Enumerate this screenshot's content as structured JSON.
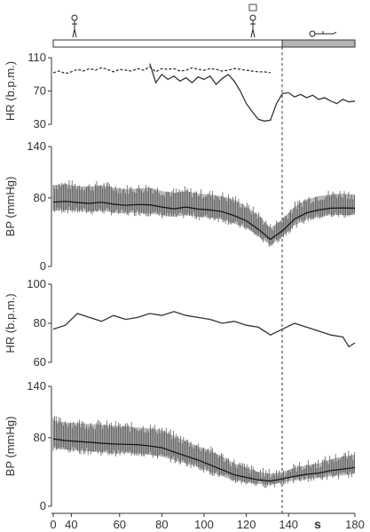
{
  "chart_data": [
    {
      "type": "line",
      "panel": "hr-top",
      "ylabel": "HR (b.p.m.)",
      "ylim": [
        30,
        110
      ],
      "yticks": [
        "110",
        "70",
        "30"
      ],
      "ytick_values": [
        110,
        70,
        30
      ],
      "series": [
        {
          "style": "dashed",
          "x": [
            0,
            5,
            10,
            15,
            20,
            25,
            30,
            35,
            40,
            45,
            50,
            55,
            60,
            65,
            70,
            75,
            80,
            85,
            90,
            95,
            100,
            105,
            110,
            115,
            120,
            125,
            130,
            135,
            140,
            145,
            150,
            155,
            160,
            165,
            170,
            175,
            180
          ],
          "y": [
            92,
            94,
            91,
            93,
            96,
            94,
            97,
            95,
            98,
            96,
            93,
            96,
            95,
            94,
            97,
            95,
            99,
            93,
            97,
            96,
            97,
            94,
            95,
            98,
            96,
            95,
            97,
            96,
            94,
            95,
            97,
            96,
            95,
            94,
            93,
            93,
            92
          ]
        },
        {
          "style": "solid",
          "x": [
            0,
            5,
            10,
            15,
            20,
            25,
            30,
            35,
            40,
            45,
            50,
            55,
            60,
            65,
            70,
            75,
            80,
            85,
            90,
            95,
            100,
            105,
            110,
            115,
            120,
            125,
            130,
            135,
            140,
            145,
            150,
            155,
            160,
            165,
            170,
            175,
            180,
            185,
            190,
            195,
            200,
            205,
            210,
            215,
            220,
            225,
            230,
            235,
            240,
            245,
            250
          ],
          "y": [
            null,
            null,
            null,
            null,
            null,
            null,
            null,
            null,
            null,
            null,
            null,
            null,
            null,
            null,
            null,
            null,
            103,
            80,
            90,
            84,
            88,
            82,
            86,
            80,
            87,
            84,
            88,
            78,
            85,
            90,
            82,
            70,
            55,
            45,
            36,
            34,
            35,
            55,
            67,
            68,
            63,
            66,
            62,
            65,
            60,
            62,
            58,
            55,
            60,
            57,
            58
          ]
        }
      ]
    },
    {
      "type": "line",
      "panel": "bp-top",
      "ylabel": "BP (mmHg)",
      "ylim": [
        0,
        140
      ],
      "yticks": [
        "140",
        "80",
        "0"
      ],
      "ytick_values": [
        140,
        80,
        0
      ],
      "series": [
        {
          "name": "",
          "x": [
            0,
            10,
            20,
            30,
            40,
            50,
            60,
            70,
            80,
            90,
            100,
            110,
            120,
            130,
            140,
            150,
            160,
            170,
            180,
            190,
            200,
            210,
            220,
            230,
            240,
            250
          ],
          "systolic": [
            95,
            96,
            94,
            93,
            95,
            92,
            90,
            91,
            92,
            88,
            86,
            88,
            85,
            84,
            82,
            78,
            70,
            60,
            45,
            55,
            70,
            78,
            82,
            84,
            85,
            84
          ],
          "diastolic": [
            65,
            66,
            65,
            64,
            65,
            63,
            62,
            63,
            62,
            60,
            58,
            60,
            58,
            57,
            55,
            50,
            45,
            35,
            25,
            35,
            48,
            55,
            58,
            60,
            60,
            60
          ]
        }
      ]
    },
    {
      "type": "line",
      "panel": "hr-bottom",
      "ylabel": "HR (b.p.m.)",
      "ylim": [
        60,
        100
      ],
      "yticks": [
        "100",
        "80",
        "60"
      ],
      "ytick_values": [
        100,
        80,
        60
      ],
      "series": [
        {
          "x": [
            0,
            10,
            20,
            30,
            40,
            50,
            60,
            70,
            80,
            90,
            100,
            110,
            120,
            130,
            140,
            150,
            160,
            170,
            180,
            190,
            200,
            210,
            220,
            230,
            240,
            245,
            250
          ],
          "y": [
            77,
            79,
            85,
            83,
            81,
            84,
            82,
            83,
            85,
            84,
            86,
            84,
            83,
            82,
            80,
            81,
            79,
            78,
            74,
            77,
            80,
            78,
            76,
            74,
            73,
            68,
            70
          ]
        }
      ]
    },
    {
      "type": "line",
      "panel": "bp-bottom",
      "ylabel": "BP (mmHg)",
      "ylim": [
        0,
        140
      ],
      "yticks": [
        "140",
        "80",
        "0"
      ],
      "ytick_values": [
        140,
        80,
        0
      ],
      "xticks": [
        "0",
        "40",
        "60",
        "80",
        "100",
        "120",
        "140",
        "180"
      ],
      "xtick_values": [
        0,
        15,
        55,
        90,
        125,
        160,
        195,
        250
      ],
      "xunit": "s",
      "series": [
        {
          "x": [
            0,
            10,
            20,
            30,
            40,
            50,
            60,
            70,
            80,
            90,
            100,
            110,
            120,
            130,
            140,
            150,
            160,
            170,
            180,
            190,
            200,
            210,
            220,
            230,
            240,
            250
          ],
          "systolic": [
            100,
            98,
            97,
            96,
            95,
            94,
            93,
            92,
            91,
            89,
            82,
            76,
            70,
            65,
            58,
            50,
            45,
            40,
            38,
            40,
            45,
            48,
            50,
            55,
            58,
            60
          ],
          "diastolic": [
            68,
            66,
            65,
            64,
            63,
            62,
            62,
            62,
            60,
            58,
            54,
            50,
            46,
            40,
            35,
            30,
            28,
            26,
            25,
            28,
            30,
            32,
            33,
            35,
            36,
            38
          ]
        }
      ]
    }
  ],
  "timeline": {
    "top_bar": {
      "fill_white_until": 180,
      "fill_gray_after": 180
    },
    "icons": [
      "standing-person-icon",
      "standing-person-thought-icon",
      "lying-person-icon"
    ],
    "marker_x": 180
  }
}
